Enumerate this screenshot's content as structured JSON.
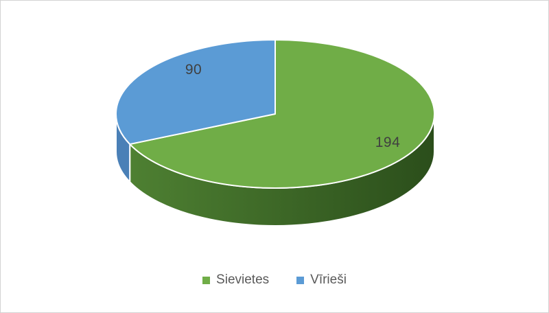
{
  "chart_data": {
    "type": "pie",
    "projection": "3d",
    "title": "",
    "categories": [
      "Sievietes",
      "Vīrieši"
    ],
    "values": [
      194,
      90
    ],
    "colors": [
      "#70AD47",
      "#5B9BD5"
    ],
    "side_colors": [
      [
        "#4E8032",
        "#2B4E1B"
      ],
      "#4A80B7"
    ],
    "slice_border_color": "#FFFFFF",
    "label_color": "#404040",
    "legend_position": "bottom",
    "legend_text_color": "#595959",
    "start_angle_deg": 0,
    "direction": "clockwise"
  }
}
